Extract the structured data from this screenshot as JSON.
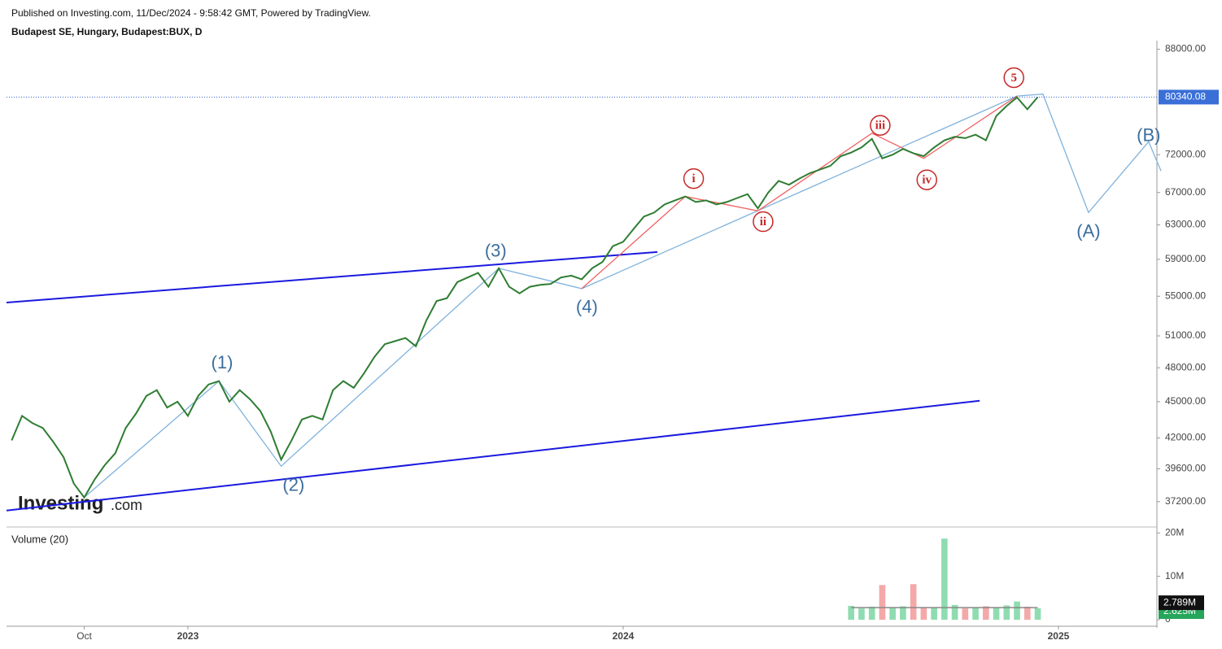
{
  "header": {
    "published": "Published on Investing.com, 11/Dec/2024 - 9:58:42 GMT, Powered by TradingView.",
    "symbol": "Budapest SE, Hungary, Budapest:BUX, D"
  },
  "logo": {
    "brand": "Investing",
    "suffix": ".com"
  },
  "chart_data": {
    "type": "line",
    "color": "#2e7d32",
    "log_scale": true,
    "categories": [
      null,
      null,
      null,
      null,
      null,
      null,
      null,
      "Oct",
      null,
      null,
      null,
      null,
      null,
      null,
      null,
      null,
      null,
      "2023",
      null,
      null,
      null,
      null,
      null,
      null,
      null,
      null,
      null,
      null,
      null,
      null,
      null,
      null,
      null,
      null,
      null,
      null,
      null,
      null,
      null,
      null,
      null,
      null,
      null,
      null,
      null,
      null,
      null,
      null,
      null,
      null,
      null,
      null,
      null,
      null,
      null,
      null,
      null,
      null,
      null,
      "2024",
      null,
      null,
      null,
      null,
      null,
      null,
      null,
      null,
      null,
      null,
      null,
      null,
      null,
      null,
      null,
      null,
      null,
      null,
      null,
      null,
      null,
      null,
      null,
      null,
      null,
      null,
      null,
      null,
      null,
      null,
      null,
      null,
      null,
      null,
      null,
      null,
      null,
      null,
      null,
      null,
      null,
      "2025",
      null,
      null,
      null,
      null,
      null,
      null,
      null,
      null,
      null
    ],
    "values": [
      41800,
      43800,
      43200,
      42800,
      41700,
      40500,
      38500,
      37500,
      38800,
      39900,
      40800,
      42800,
      44000,
      45500,
      46000,
      44500,
      45000,
      43800,
      45500,
      46500,
      46800,
      45000,
      46000,
      45200,
      44200,
      42500,
      40300,
      41800,
      43500,
      43800,
      43500,
      46000,
      46800,
      46200,
      47500,
      49000,
      50200,
      50500,
      50800,
      50000,
      52500,
      54500,
      54800,
      56500,
      57000,
      57500,
      56000,
      58000,
      56000,
      55300,
      56000,
      56200,
      56300,
      57000,
      57200,
      56800,
      58000,
      58700,
      60500,
      61000,
      62500,
      64000,
      64500,
      65500,
      66000,
      66500,
      65800,
      66000,
      65500,
      65800,
      66300,
      66800,
      65000,
      67000,
      68500,
      68000,
      68800,
      69500,
      70000,
      70500,
      71800,
      72300,
      73000,
      74200,
      71500,
      72000,
      72800,
      72200,
      71800,
      73000,
      74000,
      74500,
      74300,
      74800,
      74000,
      77500,
      79000,
      80300,
      78500,
      80340.08,
      null,
      null,
      null,
      null,
      null,
      null,
      null,
      null,
      null,
      null,
      null
    ],
    "ylim": [
      35450,
      89450
    ],
    "yticks": [
      {
        "value": 88000,
        "label": "88000.00"
      },
      {
        "value": 72000,
        "label": "72000.00"
      },
      {
        "value": 67000,
        "label": "67000.00"
      },
      {
        "value": 63000,
        "label": "63000.00"
      },
      {
        "value": 59000,
        "label": "59000.00"
      },
      {
        "value": 55000,
        "label": "55000.00"
      },
      {
        "value": 51000,
        "label": "51000.00"
      },
      {
        "value": 48000,
        "label": "48000.00"
      },
      {
        "value": 45000,
        "label": "45000.00"
      },
      {
        "value": 42000,
        "label": "42000.00"
      },
      {
        "value": 39600,
        "label": "39600.00"
      },
      {
        "value": 37200,
        "label": "37200.00"
      }
    ],
    "lines": [
      {
        "color": "#1a1adf",
        "x": [
          -0.5,
          62.3
        ],
        "values": [
          54340,
          59830
        ]
      },
      {
        "color": "#1a1adf",
        "x": [
          -0.5,
          93.4
        ],
        "values": [
          36580,
          45080
        ]
      },
      {
        "color": "#7fb2dc",
        "x": [
          7,
          20,
          26,
          47,
          55,
          97,
          99.5,
          103.9,
          109.7,
          110.9
        ],
        "values": [
          37500,
          46800,
          39800,
          58000,
          55800,
          80500,
          80800,
          64500,
          73800,
          69800
        ]
      },
      {
        "color": "#f06060",
        "x": [
          55,
          65,
          72,
          83,
          88,
          97
        ],
        "values": [
          55800,
          66500,
          64700,
          75000,
          71500,
          80500
        ]
      }
    ],
    "annotations": [
      {
        "text": "(1)",
        "x": 20.3,
        "y": 48450,
        "color": "#3c6e9e"
      },
      {
        "text": "(2)",
        "x": 27.2,
        "y": 38370,
        "color": "#3c6e9e"
      },
      {
        "text": "(3)",
        "x": 46.7,
        "y": 59920,
        "color": "#3c6e9e"
      },
      {
        "text": "(4)",
        "x": 55.5,
        "y": 53860,
        "color": "#3c6e9e"
      },
      {
        "text": "(A)",
        "x": 103.9,
        "y": 62190,
        "color": "#3c6e9e"
      },
      {
        "text": "(B)",
        "x": 109.7,
        "y": 74680,
        "color": "#3c6e9e"
      },
      {
        "text": "5",
        "x": 96.7,
        "y": 83370,
        "color": "#c62828",
        "circled": true
      },
      {
        "text": "i",
        "x": 65.8,
        "y": 68800,
        "color": "#c62828",
        "circled": true
      },
      {
        "text": "ii",
        "x": 72.5,
        "y": 63390,
        "color": "#c62828",
        "circled": true
      },
      {
        "text": "iii",
        "x": 83.8,
        "y": 76130,
        "color": "#c62828",
        "circled": true
      },
      {
        "text": "iv",
        "x": 88.3,
        "y": 68640,
        "color": "#c62828",
        "circled": true
      }
    ],
    "volume": {
      "title": "Volume (20)",
      "values": [
        null,
        null,
        null,
        null,
        null,
        null,
        null,
        null,
        null,
        null,
        null,
        null,
        null,
        null,
        null,
        null,
        null,
        null,
        null,
        null,
        null,
        null,
        null,
        null,
        null,
        null,
        null,
        null,
        null,
        null,
        null,
        null,
        null,
        null,
        null,
        null,
        null,
        null,
        null,
        null,
        null,
        null,
        null,
        null,
        null,
        null,
        null,
        null,
        null,
        null,
        null,
        null,
        null,
        null,
        null,
        null,
        null,
        null,
        null,
        null,
        null,
        null,
        null,
        null,
        null,
        null,
        null,
        null,
        null,
        null,
        null,
        null,
        null,
        null,
        null,
        null,
        null,
        null,
        null,
        null,
        null,
        3200000,
        2600000,
        3000000,
        8000000,
        2800000,
        3100000,
        8200000,
        2900000,
        2700000,
        18700000,
        3400000,
        2600000,
        2900000,
        3100000,
        2800000,
        3300000,
        4200000,
        3000000,
        2625000,
        null,
        null,
        null,
        null,
        null,
        null,
        null,
        null,
        null,
        null,
        null
      ],
      "value_labels": [
        null,
        null,
        null,
        null,
        null,
        null,
        null,
        null,
        null,
        null,
        null,
        null,
        null,
        null,
        null,
        null,
        null,
        null,
        null,
        null,
        null,
        null,
        null,
        null,
        null,
        null,
        null,
        null,
        null,
        null,
        null,
        null,
        null,
        null,
        null,
        null,
        null,
        null,
        null,
        null,
        null,
        null,
        null,
        null,
        null,
        null,
        null,
        null,
        null,
        null,
        null,
        null,
        null,
        null,
        null,
        null,
        null,
        null,
        null,
        null,
        null,
        null,
        null,
        null,
        null,
        null,
        null,
        null,
        null,
        null,
        null,
        null,
        null,
        null,
        null,
        null,
        null,
        null,
        null,
        null,
        null,
        null,
        null,
        null,
        null,
        null,
        null,
        null,
        null,
        null,
        null,
        null,
        null,
        null,
        null,
        null,
        null,
        null,
        null,
        "2.625M",
        null,
        null,
        null,
        null,
        null,
        null,
        null,
        null,
        null,
        null,
        null
      ],
      "ma": {
        "value": 2789000,
        "label": "2.789M"
      },
      "ylim": [
        0,
        21000000
      ],
      "yticks": [
        {
          "value": 20000000,
          "label": "20M"
        },
        {
          "value": 10000000,
          "label": "10M"
        },
        0
      ]
    }
  }
}
